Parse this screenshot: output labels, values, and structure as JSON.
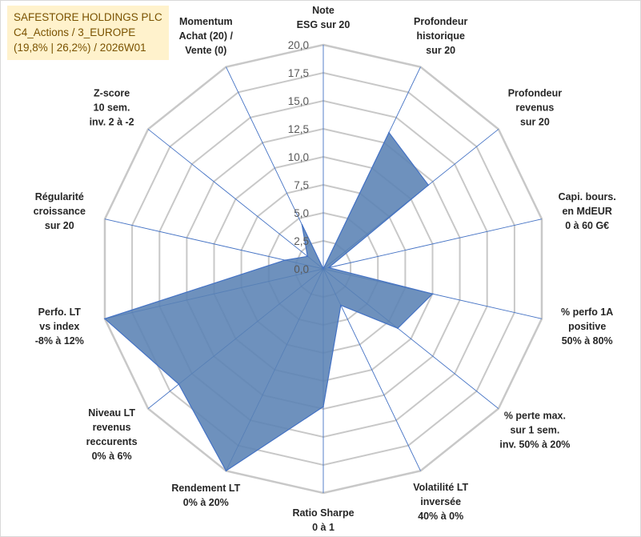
{
  "title": {
    "line1": "SAFESTORE HOLDINGS PLC",
    "line2": "C4_Actions / 3_EUROPE",
    "line3": "(19,8% | 26,2%) / 2026W01"
  },
  "colors": {
    "title_bg": "#fff2cc",
    "title_text": "#7a5200",
    "grid": "#c8c8c8",
    "spoke": "#4472c4",
    "fill": "#5a82b4",
    "stroke": "#4472c4"
  },
  "chart_data": {
    "type": "radar",
    "ylim": [
      0,
      20
    ],
    "ticks": [
      "0,0",
      "2,5",
      "5,0",
      "7,5",
      "10,0",
      "12,5",
      "15,0",
      "17,5",
      "20,0"
    ],
    "grid": true,
    "legend": "none",
    "categories": [
      [
        "Note",
        "ESG sur 20"
      ],
      [
        "Profondeur",
        "historique",
        "sur 20"
      ],
      [
        "Profondeur",
        "revenus",
        "sur 20"
      ],
      [
        "Capi. bours.",
        "en MdEUR",
        "0 à 60 G€"
      ],
      [
        "% perfo 1A",
        "positive",
        "50% à 80%"
      ],
      [
        "% perte max.",
        "sur 1 sem.",
        "inv. 50% à 20%"
      ],
      [
        "Volatilité LT",
        "inversée",
        "40% à 0%"
      ],
      [
        "Ratio Sharpe",
        "0 à 1"
      ],
      [
        "Rendement LT",
        "0% à 20%"
      ],
      [
        "Niveau LT",
        "revenus",
        "reccurents",
        "0% à 6%"
      ],
      [
        "Perfo. LT",
        "vs index",
        "-8% à 12%"
      ],
      [
        "Régularité",
        "croissance",
        "sur 20"
      ],
      [
        "Z-score",
        "10 sem.",
        "inv. 2 à -2"
      ],
      [
        "Momentum",
        "Achat (20) /",
        "Vente (0)"
      ]
    ],
    "series": [
      {
        "name": "SAFESTORE HOLDINGS PLC",
        "values": [
          0,
          13.5,
          12.0,
          0.5,
          10.0,
          8.5,
          3.6,
          12.3,
          20.0,
          16.5,
          20.0,
          3.5,
          1.8,
          4.4
        ]
      }
    ]
  }
}
